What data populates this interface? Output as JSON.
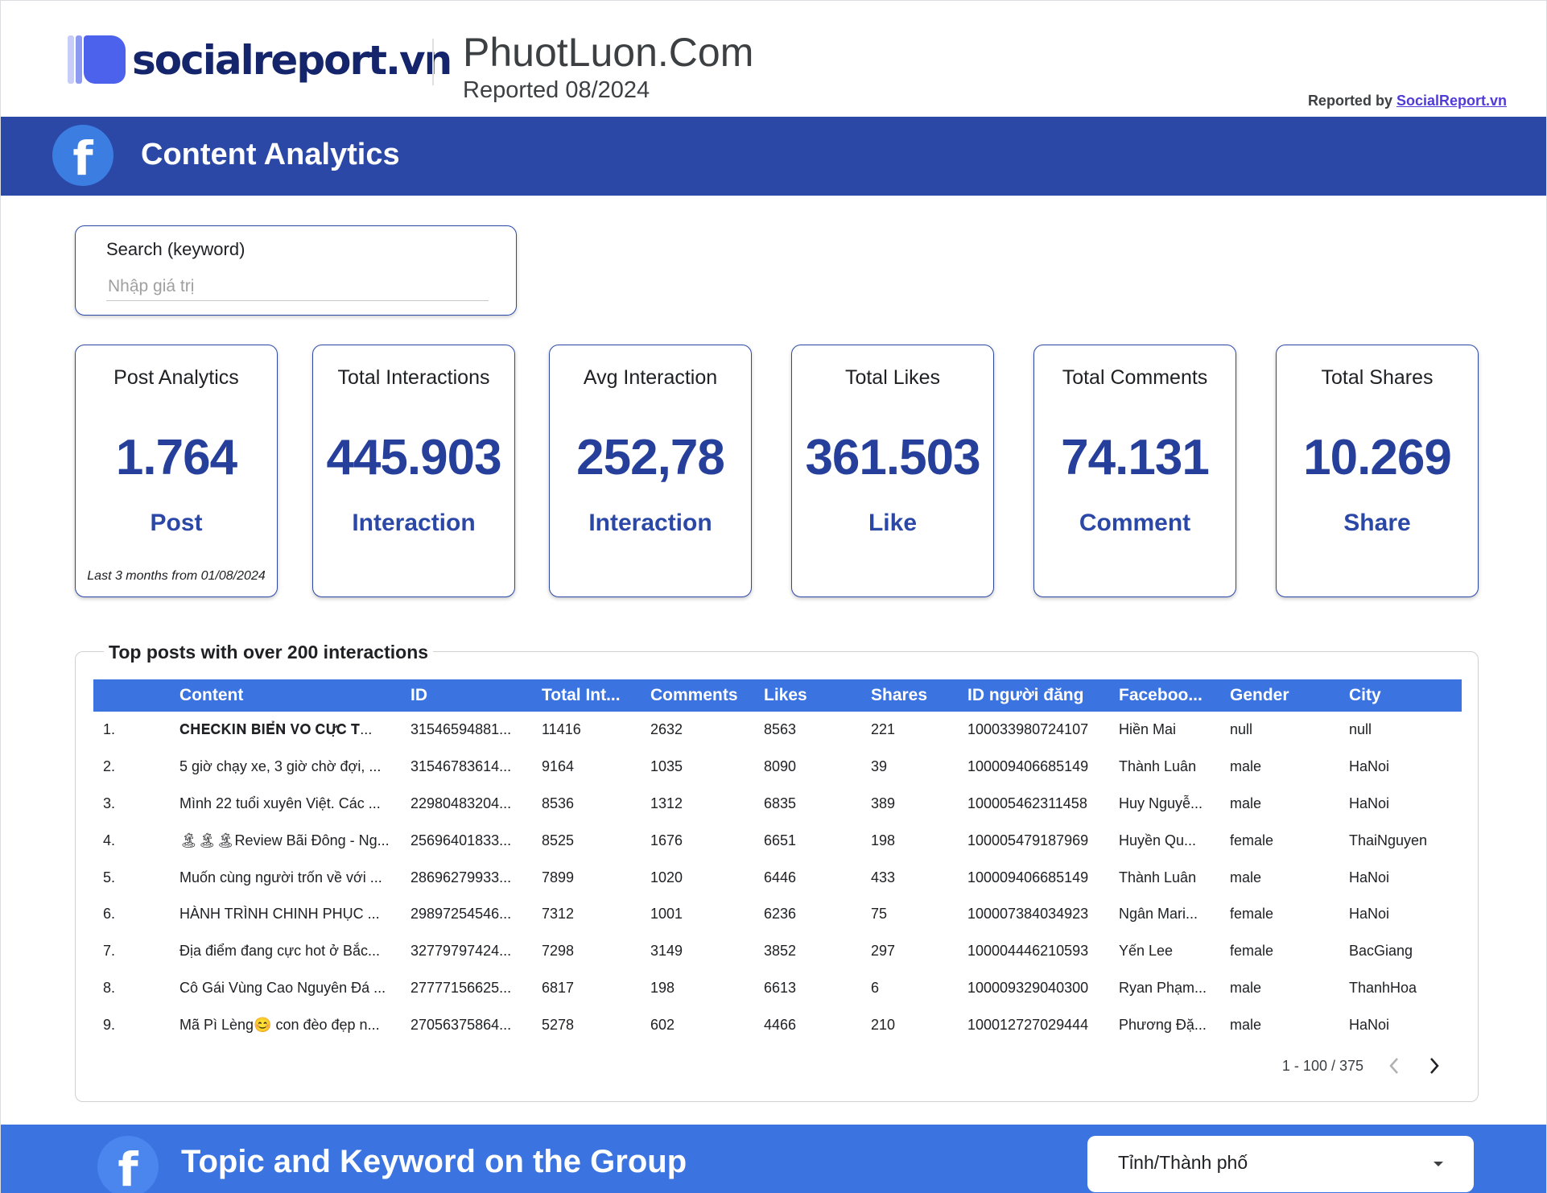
{
  "header": {
    "logo_text": "socialreport.vn",
    "site_title": "PhuotLuon.Com",
    "report_period": "Reported 08/2024",
    "reported_by_label": "Reported by",
    "reported_by_link": "SocialReport.vn"
  },
  "banner_content": {
    "icon": "facebook-icon",
    "icon_glyph": "f",
    "title": "Content Analytics"
  },
  "search": {
    "label": "Search (keyword)",
    "placeholder": "Nhập giá trị",
    "value": ""
  },
  "kpis": [
    {
      "title": "Post Analytics",
      "value": "1.764",
      "unit": "Post",
      "note": "Last 3 months from 01/08/2024"
    },
    {
      "title": "Total Interactions",
      "value": "445.903",
      "unit": "Interaction"
    },
    {
      "title": "Avg Interaction",
      "value": "252,78",
      "unit": "Interaction"
    },
    {
      "title": "Total Likes",
      "value": "361.503",
      "unit": "Like"
    },
    {
      "title": "Total Comments",
      "value": "74.131",
      "unit": "Comment"
    },
    {
      "title": "Total Shares",
      "value": "10.269",
      "unit": "Share"
    }
  ],
  "top_posts": {
    "title": "Top posts with over 200 interactions",
    "columns": [
      "",
      "Content",
      "ID",
      "Total Int...",
      "Comments",
      "Likes",
      "Shares",
      "ID người đăng",
      "Faceboo...",
      "Gender",
      "City"
    ],
    "rows": [
      [
        "1.",
        "𝐂𝐇𝐄𝐂𝐊𝐈𝐍 𝐁𝐈𝐄̂̉𝐍 𝐕𝐎 𝐂𝐔̛̣𝐂 𝐓...",
        "31546594881...",
        "11416",
        "2632",
        "8563",
        "221",
        "100033980724107",
        "Hiền Mai",
        "null",
        "null"
      ],
      [
        "2.",
        "5 giờ chạy xe, 3 giờ chờ đợi, ...",
        "31546783614...",
        "9164",
        "1035",
        "8090",
        "39",
        "100009406685149",
        "Thành Luân",
        "male",
        "HaNoi"
      ],
      [
        "3.",
        "Mình 22 tuổi xuyên Việt. Các ...",
        "22980483204...",
        "8536",
        "1312",
        "6835",
        "389",
        "100005462311458",
        "Huy Nguyễ...",
        "male",
        "HaNoi"
      ],
      [
        "4.",
        "🏝🏝🏝Review Bãi Đông - Ng...",
        "25696401833...",
        "8525",
        "1676",
        "6651",
        "198",
        "100005479187969",
        "Huyền Qu...",
        "female",
        "ThaiNguyen"
      ],
      [
        "5.",
        "Muốn cùng người trốn về với ...",
        "28696279933...",
        "7899",
        "1020",
        "6446",
        "433",
        "100009406685149",
        "Thành Luân",
        "male",
        "HaNoi"
      ],
      [
        "6.",
        "HÀNH TRÌNH CHINH PHỤC ...",
        "29897254546...",
        "7312",
        "1001",
        "6236",
        "75",
        "100007384034923",
        "Ngân Mari...",
        "female",
        "HaNoi"
      ],
      [
        "7.",
        "Địa điểm đang cực hot ở Bắc...",
        "32779797424...",
        "7298",
        "3149",
        "3852",
        "297",
        "100004446210593",
        "Yến Lee",
        "female",
        "BacGiang"
      ],
      [
        "8.",
        "Cô Gái Vùng Cao Nguyên Đá ...",
        "27777156625...",
        "6817",
        "198",
        "6613",
        "6",
        "100009329040300",
        "Ryan Phạm...",
        "male",
        "ThanhHoa"
      ],
      [
        "9.",
        "Mã Pì Lèng😊 con đèo đẹp n...",
        "27056375864...",
        "5278",
        "602",
        "4466",
        "210",
        "100012727029444",
        "Phương Đặ...",
        "male",
        "HaNoi"
      ]
    ],
    "pagination": "1 - 100 / 375"
  },
  "banner_topic": {
    "icon": "facebook-icon",
    "icon_glyph": "f",
    "title": "Topic and Keyword on the Group",
    "dropdown_label": "Tỉnh/Thành phố"
  },
  "colors": {
    "primary_dark": "#2b48a7",
    "primary": "#3b74e0",
    "kpi_value": "#253f9b",
    "link": "#4f3bd8"
  }
}
